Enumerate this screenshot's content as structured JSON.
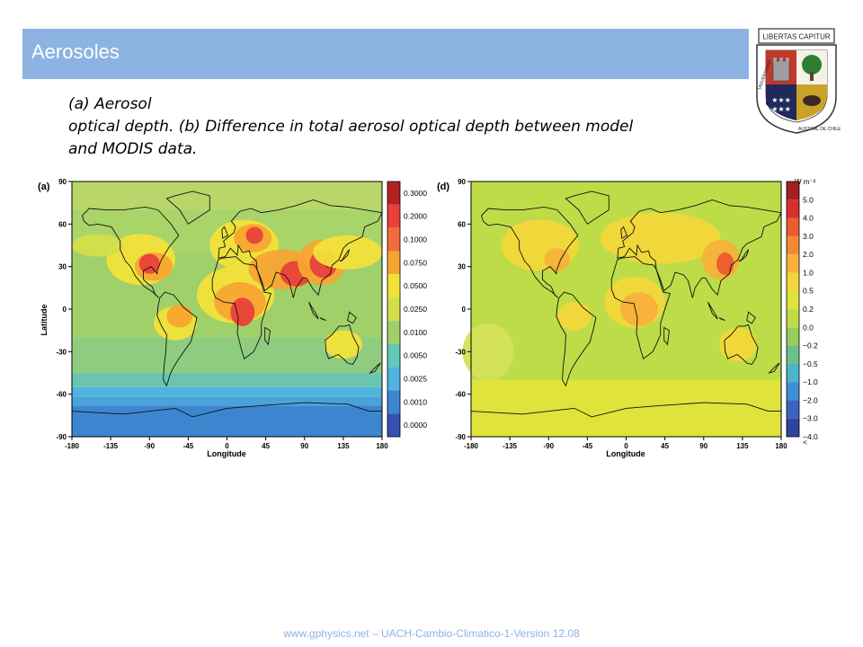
{
  "slide": {
    "title": "Aerosoles",
    "caption_lines": [
      "(a) Aerosol",
      "optical depth. (b) Difference in total aerosol optical depth between model",
      "and MODIS data."
    ],
    "footer": "www.gphysics.net – UACH-Cambio-Climatico-1-Version 12.08"
  },
  "logo": {
    "banner_text": "LIBERTAS CAPITUR",
    "ring_left": "UNIVERSIDAD",
    "ring_right": "AUSTRAL DE CHILE",
    "colors": {
      "shield_red": "#c0392b",
      "navy": "#1f2a5a",
      "green": "#2e7d32",
      "gold": "#c9a227"
    }
  },
  "panel_a": {
    "panel_label": "(a)",
    "y_ticks": [
      "90",
      "60",
      "30",
      "0",
      "-30",
      "-60",
      "-90"
    ],
    "x_ticks": [
      "-180",
      "-135",
      "-90",
      "-45",
      "0",
      "45",
      "90",
      "135",
      "180"
    ],
    "xlabel": "Longitude",
    "ylabel": "Latitude",
    "colorbar_labels": [
      "0.3000",
      "0.2000",
      "0.1000",
      "0.0750",
      "0.0500",
      "0.0250",
      "0.0100",
      "0.0050",
      "0.0025",
      "0.0010",
      "0.0000"
    ],
    "colorbar_colors": [
      "#b22222",
      "#e8413a",
      "#f26b3a",
      "#f7a531",
      "#f2e13a",
      "#d2df4a",
      "#9fd06a",
      "#63c8b6",
      "#4fb4de",
      "#3b86cf",
      "#3550b0"
    ]
  },
  "panel_d": {
    "panel_label": "(d)",
    "unit": "W m⁻²",
    "y_ticks": [
      "90",
      "60",
      "30",
      "0",
      "-30",
      "-60",
      "-90"
    ],
    "x_ticks": [
      "-180",
      "-135",
      "-90",
      "-45",
      "0",
      "45",
      "90",
      "135",
      "180"
    ],
    "xlabel": "Longitude",
    "colorbar_labels": [
      "5.0",
      "4.0",
      "3.0",
      "2.0",
      "1.0",
      "0.5",
      "0.2",
      "0.0",
      "−0.2",
      "−0.5",
      "−1.0",
      "−2.0",
      "−3.0",
      "−4.0",
      "<"
    ],
    "colorbar_colors": [
      "#a51e22",
      "#d7302b",
      "#ec5a2f",
      "#f38a33",
      "#f7b13a",
      "#f2d63a",
      "#dfe33a",
      "#bedc48",
      "#96cd5c",
      "#6bc08a",
      "#48b6c8",
      "#3c8fd3",
      "#3a63bd",
      "#2f43a0"
    ]
  }
}
